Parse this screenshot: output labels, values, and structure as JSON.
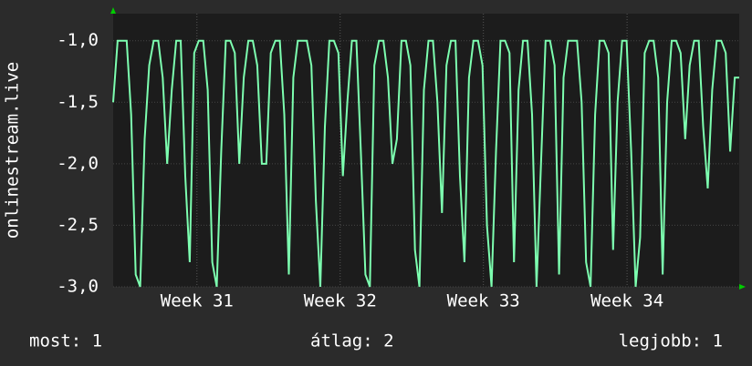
{
  "chart_data": {
    "type": "line",
    "y_label": "onlinestream.live",
    "series": [
      {
        "name": "onlinestream.live",
        "color": "#7dffb0",
        "values": [
          -1.5,
          -1,
          -1,
          -1,
          -1.6,
          -2.9,
          -3,
          -1.8,
          -1.2,
          -1,
          -1,
          -1.3,
          -2,
          -1.4,
          -1,
          -1,
          -2.1,
          -2.8,
          -1.1,
          -1,
          -1,
          -1.4,
          -2.8,
          -3,
          -1.9,
          -1,
          -1,
          -1.1,
          -2,
          -1.3,
          -1,
          -1,
          -1.2,
          -2,
          -2,
          -1.1,
          -1,
          -1,
          -1.6,
          -2.9,
          -1.3,
          -1,
          -1,
          -1,
          -1.2,
          -2.3,
          -3,
          -1.7,
          -1,
          -1,
          -1.1,
          -2.1,
          -1.5,
          -1,
          -1,
          -1.9,
          -2.9,
          -3,
          -1.2,
          -1,
          -1,
          -1.3,
          -2,
          -1.8,
          -1,
          -1,
          -1.2,
          -2.7,
          -3,
          -1.4,
          -1,
          -1,
          -1.5,
          -2.4,
          -1.2,
          -1,
          -1,
          -2.1,
          -2.8,
          -1.3,
          -1,
          -1,
          -1.2,
          -2.5,
          -3,
          -1.9,
          -1,
          -1,
          -1.1,
          -2.8,
          -1.4,
          -1,
          -1,
          -1.6,
          -3,
          -2,
          -1,
          -1,
          -1.2,
          -2.9,
          -1.3,
          -1,
          -1,
          -1,
          -1.5,
          -2.8,
          -3,
          -1.6,
          -1,
          -1,
          -1.1,
          -2.7,
          -1.5,
          -1,
          -1,
          -1.9,
          -3,
          -2.6,
          -1.1,
          -1,
          -1,
          -1.3,
          -2.9,
          -1.5,
          -1,
          -1,
          -1.1,
          -1.8,
          -1.2,
          -1,
          -1,
          -1.7,
          -2.2,
          -1.4,
          -1,
          -1,
          -1.1,
          -1.9,
          -1.3,
          -1.3
        ]
      }
    ],
    "xlim": [
      0,
      139
    ],
    "xticks": [
      {
        "value": 18.6,
        "label": "Week 31"
      },
      {
        "value": 50.4,
        "label": "Week 32"
      },
      {
        "value": 82.2,
        "label": "Week 33"
      },
      {
        "value": 114.1,
        "label": "Week 34"
      }
    ],
    "ylim": [
      -3,
      -0.78
    ],
    "yticks": [
      {
        "value": -3,
        "label": "-3,0"
      },
      {
        "value": -2.5,
        "label": "-2,5"
      },
      {
        "value": -2,
        "label": "-2,0"
      },
      {
        "value": -1.5,
        "label": "-1,5"
      },
      {
        "value": -1,
        "label": "-1,0"
      }
    ],
    "grid": true
  },
  "footer": {
    "current": "most: 1",
    "average": "átlag: 2",
    "best": "legjobb: 1"
  }
}
